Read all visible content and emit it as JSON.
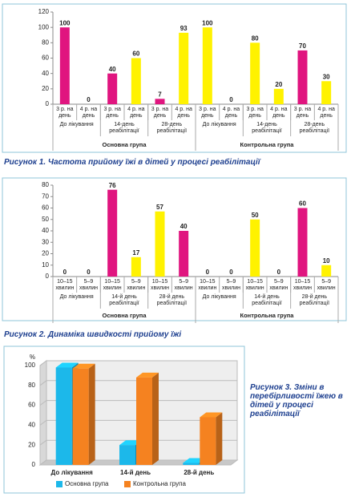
{
  "chart_data": [
    {
      "type": "bar",
      "title": "Рисунок 1.  Частота прийому їжі в дітей у процесі реабілітації",
      "categories": [
        "3 р. на день",
        "4 р. на день",
        "3 р. на день",
        "4 р. на день",
        "3 р. на день",
        "4 р. на день",
        "3 р. на день",
        "4 р. на день",
        "3 р. на день",
        "4 р. на день",
        "3 р. на день",
        "4 р. на день"
      ],
      "subgroups": [
        "До лікування",
        "14-день реабілітації",
        "28-день реабілітації",
        "До лікування",
        "14-день реабілітації",
        "28-день реабілітації"
      ],
      "groups": [
        "Основна група",
        "Контрольна група"
      ],
      "values": [
        100,
        0,
        40,
        60,
        7,
        93,
        100,
        0,
        80,
        20,
        70,
        30
      ],
      "colors": [
        "#e0157f",
        "#fff200",
        "#e0157f",
        "#fff200",
        "#e0157f",
        "#fff200",
        "#fff200",
        "#fff200",
        "#fff200",
        "#fff200",
        "#e0157f",
        "#fff200"
      ],
      "ylim": [
        0,
        120
      ],
      "yticks": [
        0,
        20,
        40,
        60,
        80,
        100,
        120
      ],
      "grid": false
    },
    {
      "type": "bar",
      "title": "Рисунок 2.  Динаміка швидкості прийому їжі",
      "categories": [
        "10–15 хвилин",
        "5–9 хвилин",
        "10–15 хвилин",
        "5–9 хвилин",
        "10–15 хвилин",
        "5–9 хвилин",
        "10–15 хвилин",
        "5–9 хвилин",
        "10–15 хвилин",
        "5–9 хвилин",
        "10–15 хвилин",
        "5–9 хвилин"
      ],
      "subgroups": [
        "До лікування",
        "14-й день реабілітації",
        "28-й день реабілітації",
        "До лікування",
        "14-й день реабілітації",
        "28-й день реабілітації"
      ],
      "groups": [
        "Основна група",
        "Контрольна група"
      ],
      "values": [
        0,
        0,
        76,
        17,
        57,
        40,
        0,
        0,
        50,
        0,
        60,
        10
      ],
      "colors": [
        "#e0157f",
        "#fff200",
        "#e0157f",
        "#fff200",
        "#fff200",
        "#e0157f",
        "#e0157f",
        "#fff200",
        "#fff200",
        "#fff200",
        "#e0157f",
        "#fff200"
      ],
      "ylim": [
        0,
        80
      ],
      "yticks": [
        0,
        10,
        20,
        30,
        40,
        50,
        60,
        70,
        80
      ],
      "grid": false
    },
    {
      "type": "bar3d",
      "title": "Рисунок 3.  Зміни в перебірливості їжею в дітей у процесі реабілітації",
      "ylabel": "%",
      "categories": [
        "До лікування",
        "14-й день",
        "28-й день"
      ],
      "series": [
        {
          "name": "Основна група",
          "color": "#1cb8ea",
          "values": [
            98,
            20,
            2
          ]
        },
        {
          "name": "Контрольна група",
          "color": "#f58220",
          "values": [
            97,
            88,
            48
          ]
        }
      ],
      "ylim": [
        0,
        100
      ],
      "yticks": [
        0,
        20,
        40,
        60,
        80,
        100
      ],
      "grid": true,
      "legend": "bottom"
    }
  ]
}
